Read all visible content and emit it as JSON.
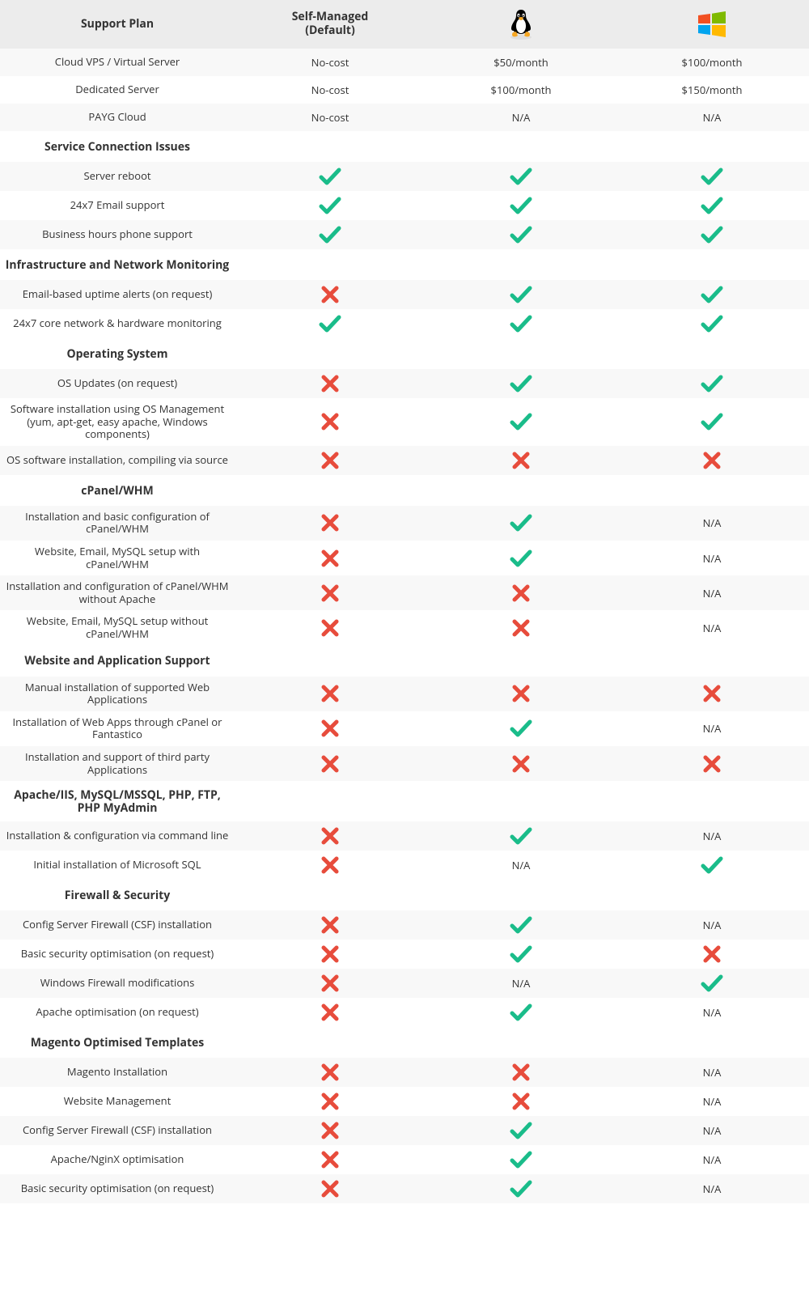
{
  "colors": {
    "check": "#1abc8a",
    "cross": "#e74c3c",
    "header_bg": "#ececec",
    "alt_row_bg": "#f8f8f8",
    "text": "#333333"
  },
  "columns": {
    "label_header": "Support Plan",
    "self_managed": "Self-Managed\n(Default)",
    "linux_label": "Linux",
    "windows_label": "Windows"
  },
  "windows_icon_colors": [
    "#f25022",
    "#7fba00",
    "#00a4ef",
    "#ffb900"
  ],
  "pricing": [
    {
      "label": "Cloud VPS / Virtual Server",
      "self": "No-cost",
      "linux": "$50/month",
      "windows": "$100/month"
    },
    {
      "label": "Dedicated Server",
      "self": "No-cost",
      "linux": "$100/month",
      "windows": "$150/month"
    },
    {
      "label": "PAYG Cloud",
      "self": "No-cost",
      "linux": "N/A",
      "windows": "N/A"
    }
  ],
  "sections": [
    {
      "title": "Service Connection Issues",
      "rows": [
        {
          "label": "Server reboot",
          "self": "check",
          "linux": "check",
          "windows": "check"
        },
        {
          "label": "24x7 Email support",
          "self": "check",
          "linux": "check",
          "windows": "check"
        },
        {
          "label": "Business hours phone support",
          "self": "check",
          "linux": "check",
          "windows": "check"
        }
      ]
    },
    {
      "title": "Infrastructure and Network Monitoring",
      "rows": [
        {
          "label": "Email-based uptime alerts (on request)",
          "self": "cross",
          "linux": "check",
          "windows": "check"
        },
        {
          "label": "24x7 core network & hardware monitoring",
          "self": "check",
          "linux": "check",
          "windows": "check"
        }
      ]
    },
    {
      "title": "Operating System",
      "rows": [
        {
          "label": "OS Updates (on request)",
          "self": "cross",
          "linux": "check",
          "windows": "check"
        },
        {
          "label": "Software installation using OS Management (yum, apt-get, easy apache, Windows components)",
          "self": "cross",
          "linux": "check",
          "windows": "check"
        },
        {
          "label": "OS software installation, compiling via source",
          "self": "cross",
          "linux": "cross",
          "windows": "cross"
        }
      ]
    },
    {
      "title": "cPanel/WHM",
      "rows": [
        {
          "label": "Installation and basic configuration of cPanel/WHM",
          "self": "cross",
          "linux": "check",
          "windows": "N/A"
        },
        {
          "label": "Website, Email, MySQL setup with cPanel/WHM",
          "self": "cross",
          "linux": "check",
          "windows": "N/A"
        },
        {
          "label": "Installation and configuration of cPanel/WHM without Apache",
          "self": "cross",
          "linux": "cross",
          "windows": "N/A"
        },
        {
          "label": "Website, Email, MySQL setup without cPanel/WHM",
          "self": "cross",
          "linux": "cross",
          "windows": "N/A"
        }
      ]
    },
    {
      "title": "Website and Application Support",
      "rows": [
        {
          "label": "Manual installation of supported Web Applications",
          "self": "cross",
          "linux": "cross",
          "windows": "cross"
        },
        {
          "label": "Installation of Web Apps through cPanel or Fantastico",
          "self": "cross",
          "linux": "check",
          "windows": "N/A"
        },
        {
          "label": "Installation and support of third party Applications",
          "self": "cross",
          "linux": "cross",
          "windows": "cross"
        }
      ]
    },
    {
      "title": "Apache/IIS, MySQL/MSSQL, PHP, FTP, PHP MyAdmin",
      "rows": [
        {
          "label": "Installation & configuration via command line",
          "self": "cross",
          "linux": "check",
          "windows": "N/A"
        },
        {
          "label": "Initial installation of Microsoft SQL",
          "self": "cross",
          "linux": "N/A",
          "windows": "check"
        }
      ]
    },
    {
      "title": "Firewall & Security",
      "rows": [
        {
          "label": "Config Server Firewall (CSF) installation",
          "self": "cross",
          "linux": "check",
          "windows": "N/A"
        },
        {
          "label": "Basic security optimisation (on request)",
          "self": "cross",
          "linux": "check",
          "windows": "cross"
        },
        {
          "label": "Windows Firewall modifications",
          "self": "cross",
          "linux": "N/A",
          "windows": "check"
        },
        {
          "label": "Apache optimisation (on request)",
          "self": "cross",
          "linux": "check",
          "windows": "N/A"
        }
      ]
    },
    {
      "title": "Magento Optimised Templates",
      "rows": [
        {
          "label": "Magento Installation",
          "self": "cross",
          "linux": "cross",
          "windows": "N/A"
        },
        {
          "label": "Website Management",
          "self": "cross",
          "linux": "cross",
          "windows": "N/A"
        },
        {
          "label": "Config Server Firewall (CSF) installation",
          "self": "cross",
          "linux": "check",
          "windows": "N/A"
        },
        {
          "label": "Apache/NginX optimisation",
          "self": "cross",
          "linux": "check",
          "windows": "N/A"
        },
        {
          "label": "Basic security optimisation (on request)",
          "self": "cross",
          "linux": "check",
          "windows": "N/A"
        }
      ]
    }
  ]
}
